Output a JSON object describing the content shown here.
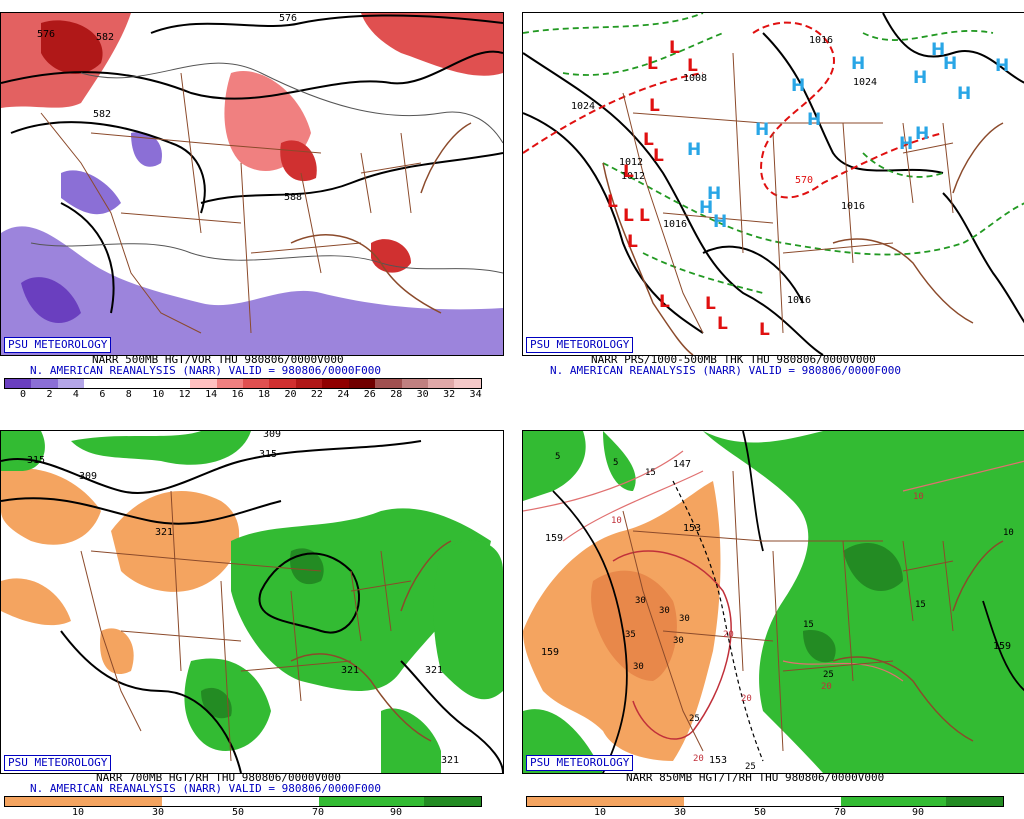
{
  "badge": "PSU METEOROLOGY",
  "panels": {
    "p1": {
      "caption1": "NARR 500MB HGT/VOR THU 980806/0000V000",
      "caption2": "N. AMERICAN REANALYSIS (NARR) VALID = 980806/0000F000",
      "contour_labels": [
        "576",
        "576",
        "582",
        "582",
        "588"
      ],
      "scale_ticks": [
        "0",
        "2",
        "4",
        "6",
        "8",
        "10",
        "12",
        "14",
        "16",
        "18",
        "20",
        "22",
        "24",
        "26",
        "28",
        "30",
        "32",
        "34"
      ],
      "scale_colors": [
        "#6a3fbf",
        "#8b6fd6",
        "#b4a6e8",
        "#ffffff",
        "#ffffff",
        "#ffffff",
        "#ffffff",
        "#ffc0c0",
        "#f08080",
        "#e05050",
        "#d03030",
        "#b01818",
        "#900000",
        "#700000",
        "#a05050",
        "#c08080",
        "#e0a8a8",
        "#f4c8c8"
      ]
    },
    "p2": {
      "caption1": "NARR PRS/1000-500MB THK THU 980806/0000V000",
      "caption2": "N. AMERICAN REANALYSIS (NARR) VALID = 980806/0000F000",
      "contour_labels": [
        "1024",
        "1016",
        "1008",
        "1024",
        "1012",
        "1016",
        "1016",
        "1012",
        "1016",
        "570"
      ],
      "high_symbol": "H",
      "low_symbol": "L"
    },
    "p3": {
      "caption1": "NARR 700MB HGT/RH THU 980806/0000V000",
      "caption2": "N. AMERICAN REANALYSIS (NARR) VALID = 980806/0000F000",
      "contour_labels": [
        "315",
        "309",
        "315",
        "321",
        "321",
        "321",
        "321",
        "309"
      ],
      "scale_ticks": [
        "10",
        "30",
        "50",
        "70",
        "90"
      ]
    },
    "p4": {
      "caption1": "NARR 850MB HGT/T/RH THU 980806/0000V000",
      "contour_labels": [
        "159",
        "147",
        "153",
        "159",
        "159",
        "153"
      ],
      "temp_labels": [
        "5",
        "5",
        "15",
        "10",
        "10",
        "30",
        "30",
        "30",
        "35",
        "30",
        "30",
        "20",
        "20",
        "20",
        "15",
        "15",
        "25",
        "25",
        "20",
        "25",
        "10"
      ],
      "scale_ticks": [
        "10",
        "30",
        "50",
        "70",
        "90"
      ]
    }
  },
  "colors": {
    "caption_blue": "#0000c0",
    "map_brown": "#8b4a2b",
    "high_blue": "#29a6e6",
    "low_red": "#e01010",
    "rh_green": "#33bb33",
    "rh_dark_green": "#238b23",
    "dry_orange": "#f4a460"
  }
}
